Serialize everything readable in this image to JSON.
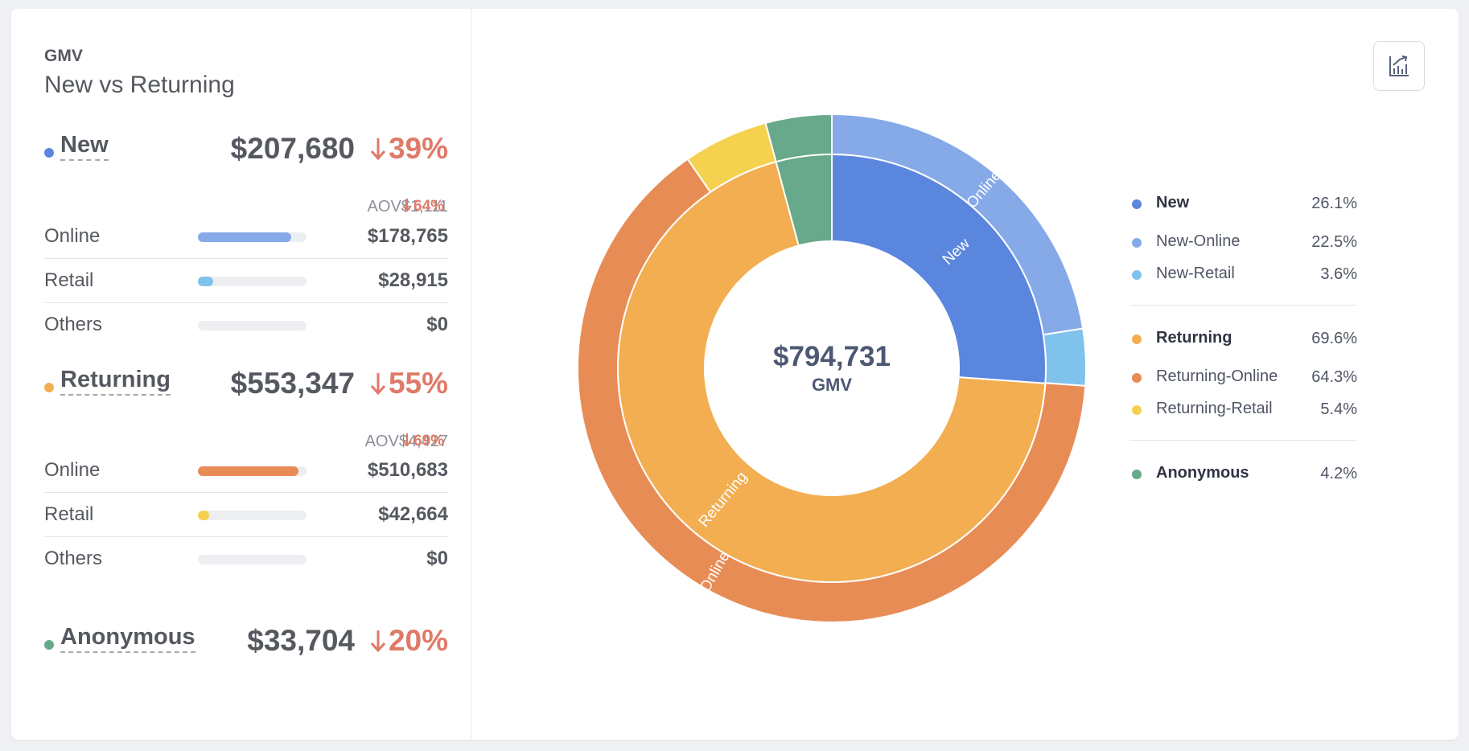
{
  "header": {
    "eyebrow": "GMV",
    "title": "New vs Returning"
  },
  "groups": [
    {
      "name": "New",
      "color": "#5b86de",
      "amount": "$207,680",
      "change": "39%",
      "aov": "AOV$1,111",
      "aov_change": "64%",
      "rows": [
        {
          "label": "Online",
          "amount": "$178,765",
          "share": 0.861,
          "color": "#86a9e8"
        },
        {
          "label": "Retail",
          "amount": "$28,915",
          "share": 0.139,
          "color": "#7fc3ed"
        },
        {
          "label": "Others",
          "amount": "$0",
          "share": 0,
          "color": "#d0d4da"
        }
      ]
    },
    {
      "name": "Returning",
      "color": "#f2ae51",
      "amount": "$553,347",
      "change": "55%",
      "aov": "AOV$4,427",
      "aov_change": "69%",
      "rows": [
        {
          "label": "Online",
          "amount": "$510,683",
          "share": 0.923,
          "color": "#e88c56"
        },
        {
          "label": "Retail",
          "amount": "$42,664",
          "share": 0.077,
          "color": "#f4d24f"
        },
        {
          "label": "Others",
          "amount": "$0",
          "share": 0,
          "color": "#d0d4da"
        }
      ]
    },
    {
      "name": "Anonymous",
      "color": "#67a98a",
      "amount": "$33,704",
      "change": "20%"
    }
  ],
  "chart_data": {
    "type": "pie",
    "subtype": "sunburst",
    "center_value": "$794,731",
    "center_label": "GMV",
    "inner_ring": [
      {
        "name": "New",
        "value": 26.1,
        "color": "#5b86de",
        "label": "New"
      },
      {
        "name": "Returning",
        "value": 69.6,
        "color": "#f2ae51",
        "label": "Returning"
      },
      {
        "name": "Anonymous",
        "value": 4.2,
        "color": "#67a98a",
        "label": ""
      }
    ],
    "outer_ring": [
      {
        "name": "New-Online",
        "value": 22.5,
        "color": "#86a9e8",
        "label": "Online"
      },
      {
        "name": "New-Retail",
        "value": 3.6,
        "color": "#7fc3ed",
        "label": ""
      },
      {
        "name": "Returning-Online",
        "value": 64.3,
        "color": "#e88c56",
        "label": "Online"
      },
      {
        "name": "Returning-Retail",
        "value": 5.4,
        "color": "#f4d24f",
        "label": ""
      }
    ],
    "legend": [
      [
        {
          "name": "New",
          "value": "26.1%",
          "color": "#5b86de",
          "bold": true
        },
        {
          "name": "New-Online",
          "value": "22.5%",
          "color": "#86a9e8",
          "bold": false
        },
        {
          "name": "New-Retail",
          "value": "3.6%",
          "color": "#7fc3ed",
          "bold": false
        }
      ],
      [
        {
          "name": "Returning",
          "value": "69.6%",
          "color": "#f2ae51",
          "bold": true
        },
        {
          "name": "Returning-Online",
          "value": "64.3%",
          "color": "#e88c56",
          "bold": false
        },
        {
          "name": "Returning-Retail",
          "value": "5.4%",
          "color": "#f4d24f",
          "bold": false
        }
      ],
      [
        {
          "name": "Anonymous",
          "value": "4.2%",
          "color": "#67a98a",
          "bold": true
        }
      ]
    ]
  },
  "icons": {
    "down_arrow": "arrow-down-icon",
    "chart_toggle": "chart-line-icon"
  }
}
